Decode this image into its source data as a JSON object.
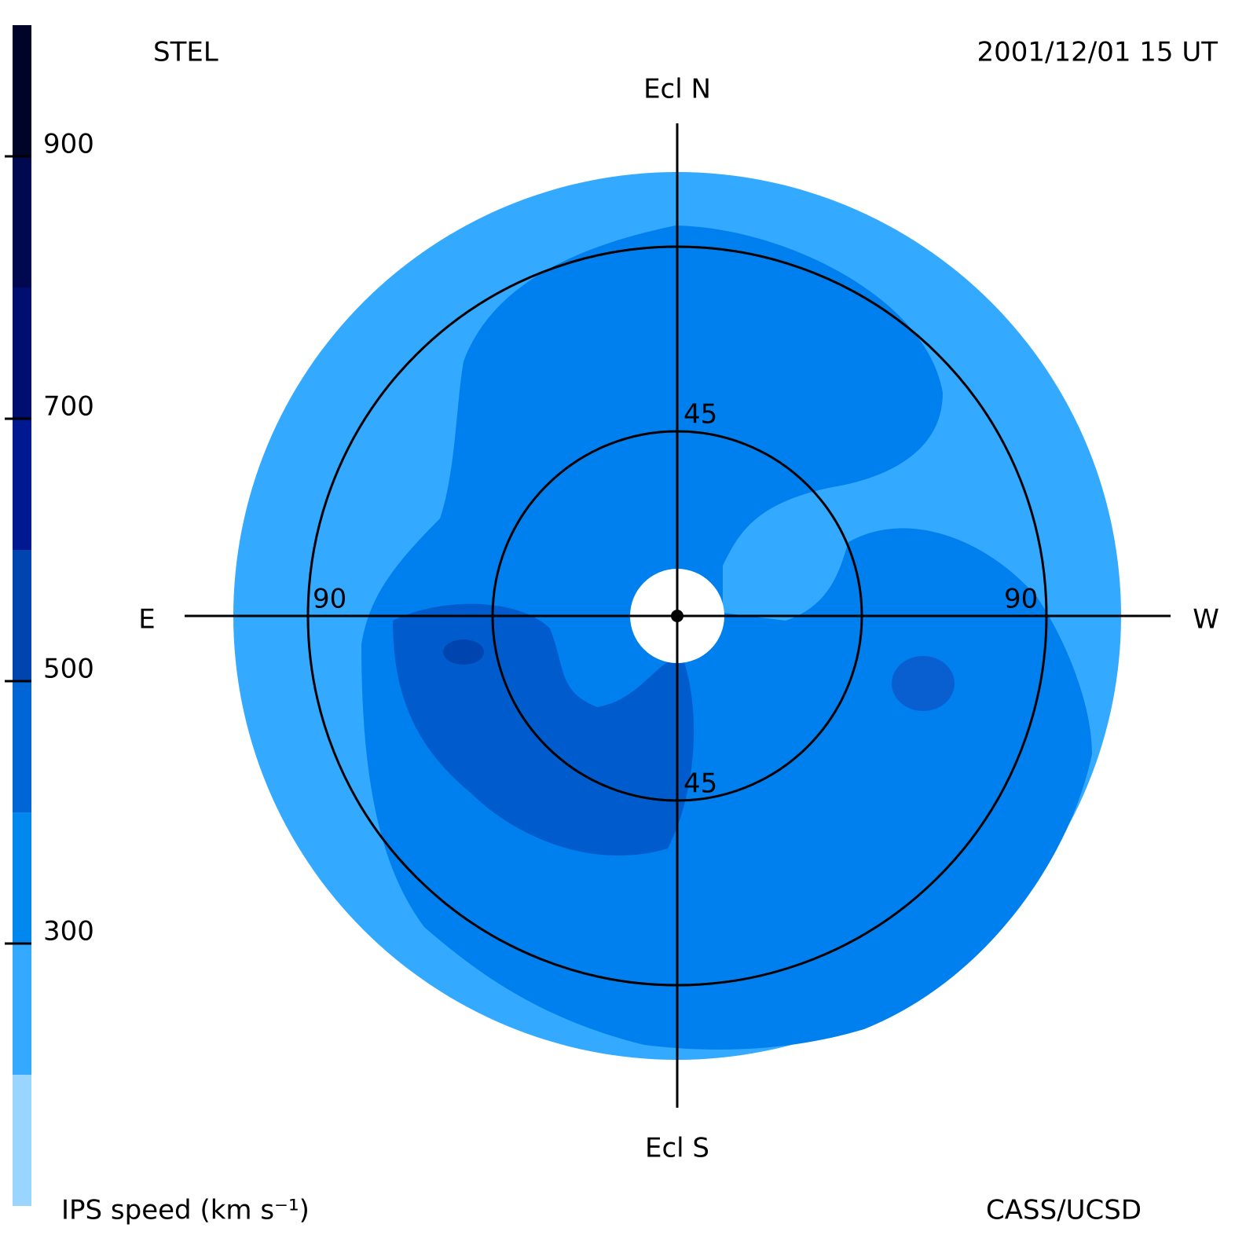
{
  "header": {
    "left": "STEL",
    "right": "2001/12/01 15 UT"
  },
  "map": {
    "top": "Ecl N",
    "bottom": "Ecl S",
    "left": "E",
    "right": "W",
    "rings": [
      45,
      90
    ]
  },
  "colorbar": {
    "title": "IPS speed (km s⁻¹)",
    "lim": [
      100,
      1000
    ],
    "ticks": [
      300,
      500,
      700,
      900
    ],
    "levels": [
      100,
      200,
      300,
      400,
      500,
      600,
      700,
      800,
      900,
      1000
    ],
    "colors": [
      "#99d5ff",
      "#33aaff",
      "#0088ee",
      "#0066d6",
      "#0044b0",
      "#001890",
      "#000e70",
      "#000850",
      "#000428"
    ]
  },
  "footer": "CASS/UCSD"
}
